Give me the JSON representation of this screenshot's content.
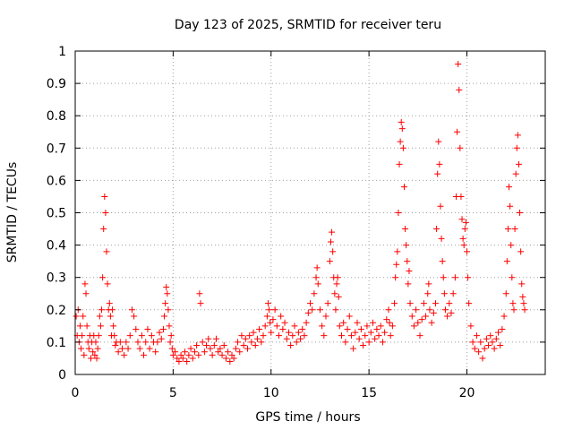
{
  "chart_data": {
    "type": "scatter",
    "title": "Day 123 of 2025, SRMTID for receiver teru",
    "xlabel": "GPS time / hours",
    "ylabel": "SRMTID / TECUs",
    "xlim": [
      0,
      24
    ],
    "ylim": [
      0,
      1
    ],
    "x_ticks": [
      0,
      5,
      10,
      15,
      20
    ],
    "x_tick_labels": [
      "0",
      "5",
      "10",
      "15",
      "20"
    ],
    "y_ticks": [
      0,
      0.1,
      0.2,
      0.3,
      0.4,
      0.5,
      0.6,
      0.7,
      0.8,
      0.9,
      1
    ],
    "y_tick_labels": [
      "0",
      "0.1",
      "0.2",
      "0.3",
      "0.4",
      "0.5",
      "0.6",
      "0.7",
      "0.8",
      "0.9",
      "1"
    ],
    "grid": true,
    "marker": "+",
    "color": "#ff0000",
    "series": [
      {
        "name": "SRMTID",
        "points": [
          [
            0.05,
            0.18
          ],
          [
            0.1,
            0.12
          ],
          [
            0.15,
            0.2
          ],
          [
            0.2,
            0.1
          ],
          [
            0.25,
            0.15
          ],
          [
            0.3,
            0.08
          ],
          [
            0.35,
            0.12
          ],
          [
            0.4,
            0.18
          ],
          [
            0.45,
            0.06
          ],
          [
            0.5,
            0.28
          ],
          [
            0.55,
            0.25
          ],
          [
            0.6,
            0.15
          ],
          [
            0.65,
            0.1
          ],
          [
            0.7,
            0.08
          ],
          [
            0.75,
            0.12
          ],
          [
            0.8,
            0.05
          ],
          [
            0.85,
            0.1
          ],
          [
            0.9,
            0.07
          ],
          [
            0.95,
            0.12
          ],
          [
            1.0,
            0.06
          ],
          [
            1.05,
            0.1
          ],
          [
            1.1,
            0.05
          ],
          [
            1.15,
            0.08
          ],
          [
            1.2,
            0.12
          ],
          [
            1.25,
            0.18
          ],
          [
            1.3,
            0.15
          ],
          [
            1.35,
            0.2
          ],
          [
            1.4,
            0.3
          ],
          [
            1.45,
            0.45
          ],
          [
            1.5,
            0.55
          ],
          [
            1.55,
            0.5
          ],
          [
            1.6,
            0.38
          ],
          [
            1.65,
            0.28
          ],
          [
            1.7,
            0.2
          ],
          [
            1.75,
            0.22
          ],
          [
            1.8,
            0.18
          ],
          [
            1.85,
            0.12
          ],
          [
            1.9,
            0.2
          ],
          [
            1.95,
            0.15
          ],
          [
            2.0,
            0.12
          ],
          [
            2.05,
            0.09
          ],
          [
            2.1,
            0.1
          ],
          [
            2.2,
            0.07
          ],
          [
            2.3,
            0.1
          ],
          [
            2.4,
            0.08
          ],
          [
            2.5,
            0.06
          ],
          [
            2.6,
            0.1
          ],
          [
            2.7,
            0.08
          ],
          [
            2.8,
            0.12
          ],
          [
            2.9,
            0.2
          ],
          [
            3.0,
            0.18
          ],
          [
            3.1,
            0.14
          ],
          [
            3.2,
            0.1
          ],
          [
            3.3,
            0.08
          ],
          [
            3.4,
            0.12
          ],
          [
            3.5,
            0.06
          ],
          [
            3.6,
            0.1
          ],
          [
            3.7,
            0.14
          ],
          [
            3.8,
            0.08
          ],
          [
            3.9,
            0.12
          ],
          [
            4.0,
            0.1
          ],
          [
            4.1,
            0.07
          ],
          [
            4.2,
            0.1
          ],
          [
            4.3,
            0.13
          ],
          [
            4.4,
            0.11
          ],
          [
            4.5,
            0.14
          ],
          [
            4.55,
            0.18
          ],
          [
            4.6,
            0.22
          ],
          [
            4.65,
            0.27
          ],
          [
            4.7,
            0.25
          ],
          [
            4.75,
            0.2
          ],
          [
            4.8,
            0.15
          ],
          [
            4.85,
            0.1
          ],
          [
            4.9,
            0.12
          ],
          [
            4.95,
            0.08
          ],
          [
            5.0,
            0.06
          ],
          [
            5.1,
            0.07
          ],
          [
            5.2,
            0.05
          ],
          [
            5.3,
            0.04
          ],
          [
            5.4,
            0.06
          ],
          [
            5.5,
            0.05
          ],
          [
            5.6,
            0.07
          ],
          [
            5.7,
            0.04
          ],
          [
            5.8,
            0.06
          ],
          [
            5.9,
            0.08
          ],
          [
            6.0,
            0.05
          ],
          [
            6.1,
            0.07
          ],
          [
            6.2,
            0.09
          ],
          [
            6.3,
            0.06
          ],
          [
            6.35,
            0.25
          ],
          [
            6.4,
            0.22
          ],
          [
            6.5,
            0.1
          ],
          [
            6.6,
            0.07
          ],
          [
            6.7,
            0.09
          ],
          [
            6.8,
            0.11
          ],
          [
            6.9,
            0.08
          ],
          [
            7.0,
            0.06
          ],
          [
            7.1,
            0.09
          ],
          [
            7.2,
            0.11
          ],
          [
            7.3,
            0.07
          ],
          [
            7.4,
            0.08
          ],
          [
            7.5,
            0.06
          ],
          [
            7.6,
            0.09
          ],
          [
            7.7,
            0.05
          ],
          [
            7.8,
            0.07
          ],
          [
            7.9,
            0.04
          ],
          [
            8.0,
            0.06
          ],
          [
            8.1,
            0.05
          ],
          [
            8.2,
            0.08
          ],
          [
            8.3,
            0.1
          ],
          [
            8.4,
            0.07
          ],
          [
            8.5,
            0.12
          ],
          [
            8.6,
            0.09
          ],
          [
            8.7,
            0.11
          ],
          [
            8.8,
            0.08
          ],
          [
            8.9,
            0.12
          ],
          [
            9.0,
            0.1
          ],
          [
            9.1,
            0.13
          ],
          [
            9.2,
            0.09
          ],
          [
            9.3,
            0.11
          ],
          [
            9.4,
            0.14
          ],
          [
            9.5,
            0.1
          ],
          [
            9.6,
            0.12
          ],
          [
            9.7,
            0.15
          ],
          [
            9.8,
            0.18
          ],
          [
            9.85,
            0.22
          ],
          [
            9.9,
            0.2
          ],
          [
            9.95,
            0.16
          ],
          [
            10.0,
            0.13
          ],
          [
            10.1,
            0.17
          ],
          [
            10.2,
            0.2
          ],
          [
            10.3,
            0.15
          ],
          [
            10.4,
            0.12
          ],
          [
            10.5,
            0.18
          ],
          [
            10.6,
            0.14
          ],
          [
            10.7,
            0.16
          ],
          [
            10.8,
            0.11
          ],
          [
            10.9,
            0.13
          ],
          [
            11.0,
            0.09
          ],
          [
            11.1,
            0.12
          ],
          [
            11.2,
            0.15
          ],
          [
            11.3,
            0.1
          ],
          [
            11.4,
            0.13
          ],
          [
            11.5,
            0.11
          ],
          [
            11.6,
            0.14
          ],
          [
            11.7,
            0.12
          ],
          [
            11.8,
            0.16
          ],
          [
            11.9,
            0.19
          ],
          [
            12.0,
            0.22
          ],
          [
            12.1,
            0.2
          ],
          [
            12.2,
            0.25
          ],
          [
            12.3,
            0.3
          ],
          [
            12.35,
            0.33
          ],
          [
            12.4,
            0.28
          ],
          [
            12.5,
            0.2
          ],
          [
            12.6,
            0.15
          ],
          [
            12.7,
            0.12
          ],
          [
            12.8,
            0.18
          ],
          [
            12.9,
            0.22
          ],
          [
            13.0,
            0.35
          ],
          [
            13.05,
            0.41
          ],
          [
            13.1,
            0.44
          ],
          [
            13.15,
            0.38
          ],
          [
            13.2,
            0.3
          ],
          [
            13.25,
            0.25
          ],
          [
            13.3,
            0.2
          ],
          [
            13.35,
            0.28
          ],
          [
            13.4,
            0.3
          ],
          [
            13.45,
            0.24
          ],
          [
            13.5,
            0.15
          ],
          [
            13.6,
            0.12
          ],
          [
            13.7,
            0.16
          ],
          [
            13.8,
            0.1
          ],
          [
            13.9,
            0.14
          ],
          [
            14.0,
            0.18
          ],
          [
            14.1,
            0.12
          ],
          [
            14.2,
            0.08
          ],
          [
            14.3,
            0.13
          ],
          [
            14.4,
            0.16
          ],
          [
            14.5,
            0.11
          ],
          [
            14.6,
            0.14
          ],
          [
            14.7,
            0.09
          ],
          [
            14.8,
            0.12
          ],
          [
            14.9,
            0.15
          ],
          [
            15.0,
            0.1
          ],
          [
            15.1,
            0.13
          ],
          [
            15.2,
            0.16
          ],
          [
            15.3,
            0.11
          ],
          [
            15.4,
            0.14
          ],
          [
            15.5,
            0.12
          ],
          [
            15.6,
            0.15
          ],
          [
            15.7,
            0.1
          ],
          [
            15.8,
            0.13
          ],
          [
            15.9,
            0.17
          ],
          [
            16.0,
            0.2
          ],
          [
            16.05,
            0.16
          ],
          [
            16.1,
            0.12
          ],
          [
            16.2,
            0.15
          ],
          [
            16.3,
            0.22
          ],
          [
            16.35,
            0.3
          ],
          [
            16.4,
            0.34
          ],
          [
            16.45,
            0.38
          ],
          [
            16.5,
            0.5
          ],
          [
            16.55,
            0.65
          ],
          [
            16.6,
            0.72
          ],
          [
            16.65,
            0.78
          ],
          [
            16.7,
            0.76
          ],
          [
            16.75,
            0.7
          ],
          [
            16.8,
            0.58
          ],
          [
            16.85,
            0.45
          ],
          [
            16.9,
            0.4
          ],
          [
            16.95,
            0.35
          ],
          [
            17.0,
            0.28
          ],
          [
            17.05,
            0.32
          ],
          [
            17.1,
            0.22
          ],
          [
            17.2,
            0.18
          ],
          [
            17.3,
            0.15
          ],
          [
            17.4,
            0.2
          ],
          [
            17.5,
            0.16
          ],
          [
            17.6,
            0.12
          ],
          [
            17.7,
            0.17
          ],
          [
            17.8,
            0.22
          ],
          [
            17.9,
            0.18
          ],
          [
            18.0,
            0.25
          ],
          [
            18.05,
            0.28
          ],
          [
            18.1,
            0.2
          ],
          [
            18.2,
            0.16
          ],
          [
            18.3,
            0.19
          ],
          [
            18.4,
            0.22
          ],
          [
            18.45,
            0.45
          ],
          [
            18.5,
            0.62
          ],
          [
            18.55,
            0.72
          ],
          [
            18.6,
            0.65
          ],
          [
            18.65,
            0.52
          ],
          [
            18.7,
            0.42
          ],
          [
            18.75,
            0.35
          ],
          [
            18.8,
            0.3
          ],
          [
            18.85,
            0.25
          ],
          [
            18.9,
            0.2
          ],
          [
            19.0,
            0.18
          ],
          [
            19.1,
            0.22
          ],
          [
            19.2,
            0.19
          ],
          [
            19.3,
            0.25
          ],
          [
            19.4,
            0.3
          ],
          [
            19.45,
            0.55
          ],
          [
            19.5,
            0.75
          ],
          [
            19.55,
            0.96
          ],
          [
            19.6,
            0.88
          ],
          [
            19.65,
            0.7
          ],
          [
            19.7,
            0.55
          ],
          [
            19.75,
            0.48
          ],
          [
            19.8,
            0.42
          ],
          [
            19.85,
            0.4
          ],
          [
            19.9,
            0.45
          ],
          [
            19.95,
            0.47
          ],
          [
            20.0,
            0.38
          ],
          [
            20.05,
            0.3
          ],
          [
            20.1,
            0.22
          ],
          [
            20.2,
            0.15
          ],
          [
            20.3,
            0.1
          ],
          [
            20.4,
            0.08
          ],
          [
            20.5,
            0.12
          ],
          [
            20.6,
            0.07
          ],
          [
            20.7,
            0.1
          ],
          [
            20.8,
            0.05
          ],
          [
            20.9,
            0.08
          ],
          [
            21.0,
            0.11
          ],
          [
            21.1,
            0.09
          ],
          [
            21.2,
            0.12
          ],
          [
            21.3,
            0.1
          ],
          [
            21.4,
            0.08
          ],
          [
            21.5,
            0.11
          ],
          [
            21.6,
            0.13
          ],
          [
            21.7,
            0.09
          ],
          [
            21.8,
            0.14
          ],
          [
            21.9,
            0.18
          ],
          [
            22.0,
            0.25
          ],
          [
            22.05,
            0.35
          ],
          [
            22.1,
            0.45
          ],
          [
            22.15,
            0.58
          ],
          [
            22.2,
            0.52
          ],
          [
            22.25,
            0.4
          ],
          [
            22.3,
            0.3
          ],
          [
            22.35,
            0.22
          ],
          [
            22.4,
            0.2
          ],
          [
            22.45,
            0.45
          ],
          [
            22.5,
            0.62
          ],
          [
            22.55,
            0.7
          ],
          [
            22.6,
            0.74
          ],
          [
            22.65,
            0.65
          ],
          [
            22.7,
            0.5
          ],
          [
            22.75,
            0.38
          ],
          [
            22.8,
            0.28
          ],
          [
            22.85,
            0.24
          ],
          [
            22.9,
            0.22
          ],
          [
            22.95,
            0.2
          ]
        ]
      }
    ]
  }
}
